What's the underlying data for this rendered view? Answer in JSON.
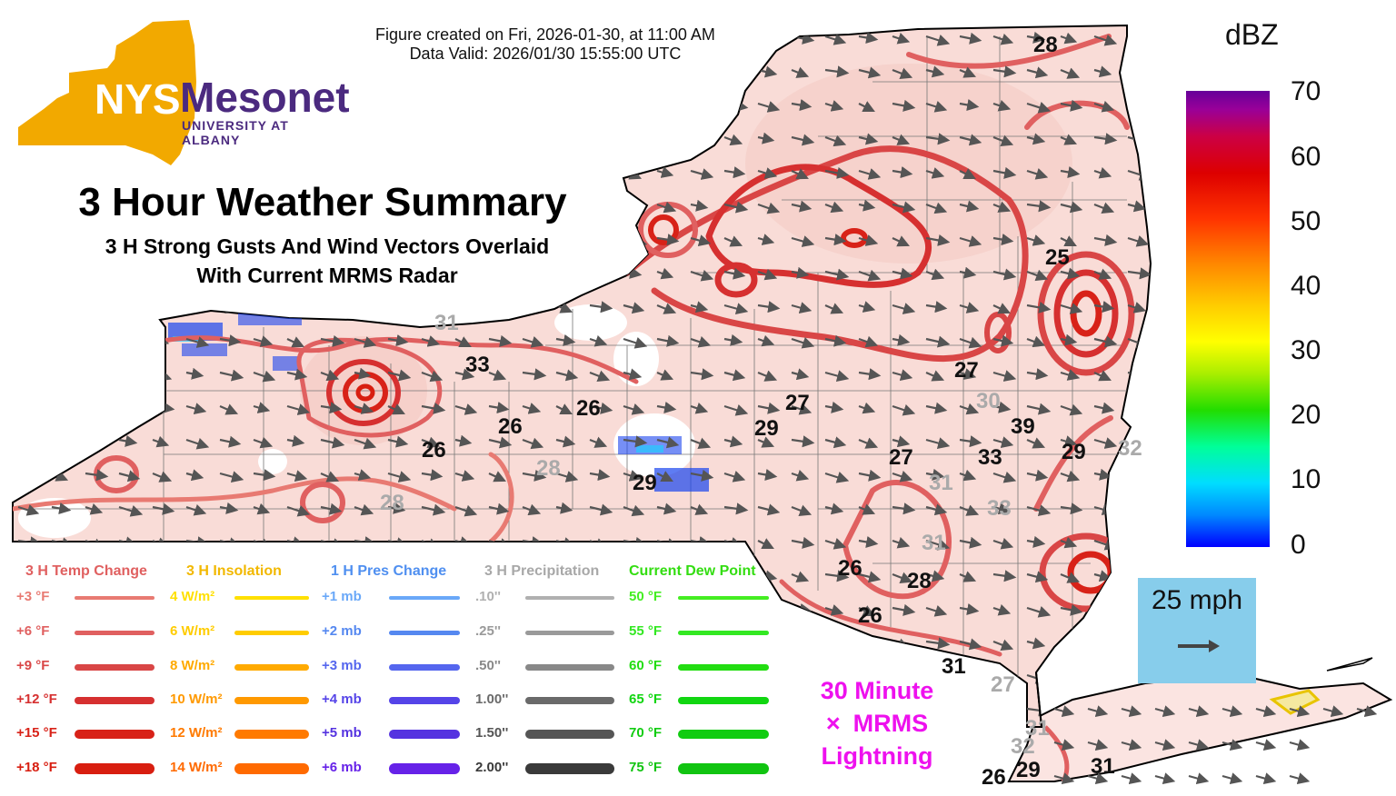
{
  "header": {
    "created": "Figure created on Fri, 2026-01-30, at 11:00 AM",
    "valid": "Data Valid: 2026/01/30 15:55:00 UTC"
  },
  "logo": {
    "nys": "NYS",
    "mesonet": "Mesonet",
    "university": "UNIVERSITY AT ALBANY"
  },
  "title": "3 Hour Weather Summary",
  "subtitle_line1": "3 H Strong Gusts And Wind Vectors Overlaid",
  "subtitle_line2": "With Current MRMS Radar",
  "colorbar": {
    "title": "dBZ",
    "ticks": [
      "70",
      "60",
      "50",
      "40",
      "30",
      "20",
      "10",
      "0"
    ]
  },
  "wind_scale": {
    "label": "25 mph"
  },
  "lightning_label": {
    "line1": "30 Minute",
    "line2": "MRMS",
    "line3": "Lightning",
    "marker": "×"
  },
  "legend": {
    "temp": {
      "header": "3 H Temp Change",
      "color": "#e06060",
      "items": [
        "+3 °F",
        "+6 °F",
        "+9 °F",
        "+12 °F",
        "+15 °F",
        "+18 °F"
      ],
      "line_colors": [
        "#e87a72",
        "#e06060",
        "#d94646",
        "#d63030",
        "#d82218",
        "#d81e10"
      ]
    },
    "insolation": {
      "header": "3 H Insolation",
      "color": "#f2b800",
      "items": [
        "4 W/m²",
        "6 W/m²",
        "8 W/m²",
        "10 W/m²",
        "12 W/m²",
        "14 W/m²"
      ],
      "line_colors": [
        "#ffe000",
        "#ffcc00",
        "#ffaa00",
        "#ff9900",
        "#ff7a00",
        "#ff6a00"
      ]
    },
    "pressure": {
      "header": "1 H Pres Change",
      "color": "#4f8ff0",
      "items": [
        "+1 mb",
        "+2 mb",
        "+3 mb",
        "+4 mb",
        "+5 mb",
        "+6 mb"
      ],
      "line_colors": [
        "#6aa8f8",
        "#5588f0",
        "#5566ee",
        "#5544e8",
        "#5533e0",
        "#6622e8"
      ]
    },
    "precip": {
      "header": "3 H Precipitation",
      "color": "#a8a8a8",
      "items": [
        ".10''",
        ".25''",
        ".50''",
        "1.00''",
        "1.50''",
        "2.00''"
      ],
      "line_colors": [
        "#b0b0b0",
        "#9a9a9a",
        "#888888",
        "#6a6a6a",
        "#555555",
        "#3a3a3a"
      ]
    },
    "dewpoint": {
      "header": "Current Dew Point",
      "color": "#33dd11",
      "items": [
        "50 °F",
        "55 °F",
        "60 °F",
        "65 °F",
        "70 °F",
        "75 °F"
      ],
      "line_colors": [
        "#44ee22",
        "#33e822",
        "#22dd11",
        "#11d611",
        "#11cc11",
        "#11c411"
      ]
    }
  },
  "gust_labels": [
    {
      "text": "28",
      "color": "black"
    },
    {
      "text": "25",
      "color": "black"
    },
    {
      "text": "31",
      "color": "gray"
    },
    {
      "text": "33",
      "color": "black"
    },
    {
      "text": "26",
      "color": "black"
    },
    {
      "text": "26",
      "color": "black"
    },
    {
      "text": "26",
      "color": "black"
    },
    {
      "text": "28",
      "color": "gray"
    },
    {
      "text": "28",
      "color": "gray"
    },
    {
      "text": "29",
      "color": "black"
    },
    {
      "text": "29",
      "color": "black"
    },
    {
      "text": "27",
      "color": "black"
    },
    {
      "text": "27",
      "color": "black"
    },
    {
      "text": "30",
      "color": "gray"
    },
    {
      "text": "39",
      "color": "black"
    },
    {
      "text": "33",
      "color": "black"
    },
    {
      "text": "29",
      "color": "black"
    },
    {
      "text": "32",
      "color": "gray"
    },
    {
      "text": "27",
      "color": "black"
    },
    {
      "text": "31",
      "color": "gray"
    },
    {
      "text": "33",
      "color": "gray"
    },
    {
      "text": "31",
      "color": "gray"
    },
    {
      "text": "26",
      "color": "black"
    },
    {
      "text": "28",
      "color": "black"
    },
    {
      "text": "26",
      "color": "black"
    },
    {
      "text": "31",
      "color": "black"
    },
    {
      "text": "27",
      "color": "gray"
    },
    {
      "text": "31",
      "color": "gray"
    },
    {
      "text": "32",
      "color": "gray"
    },
    {
      "text": "26",
      "color": "black"
    },
    {
      "text": "29",
      "color": "black"
    },
    {
      "text": "31",
      "color": "black"
    }
  ]
}
